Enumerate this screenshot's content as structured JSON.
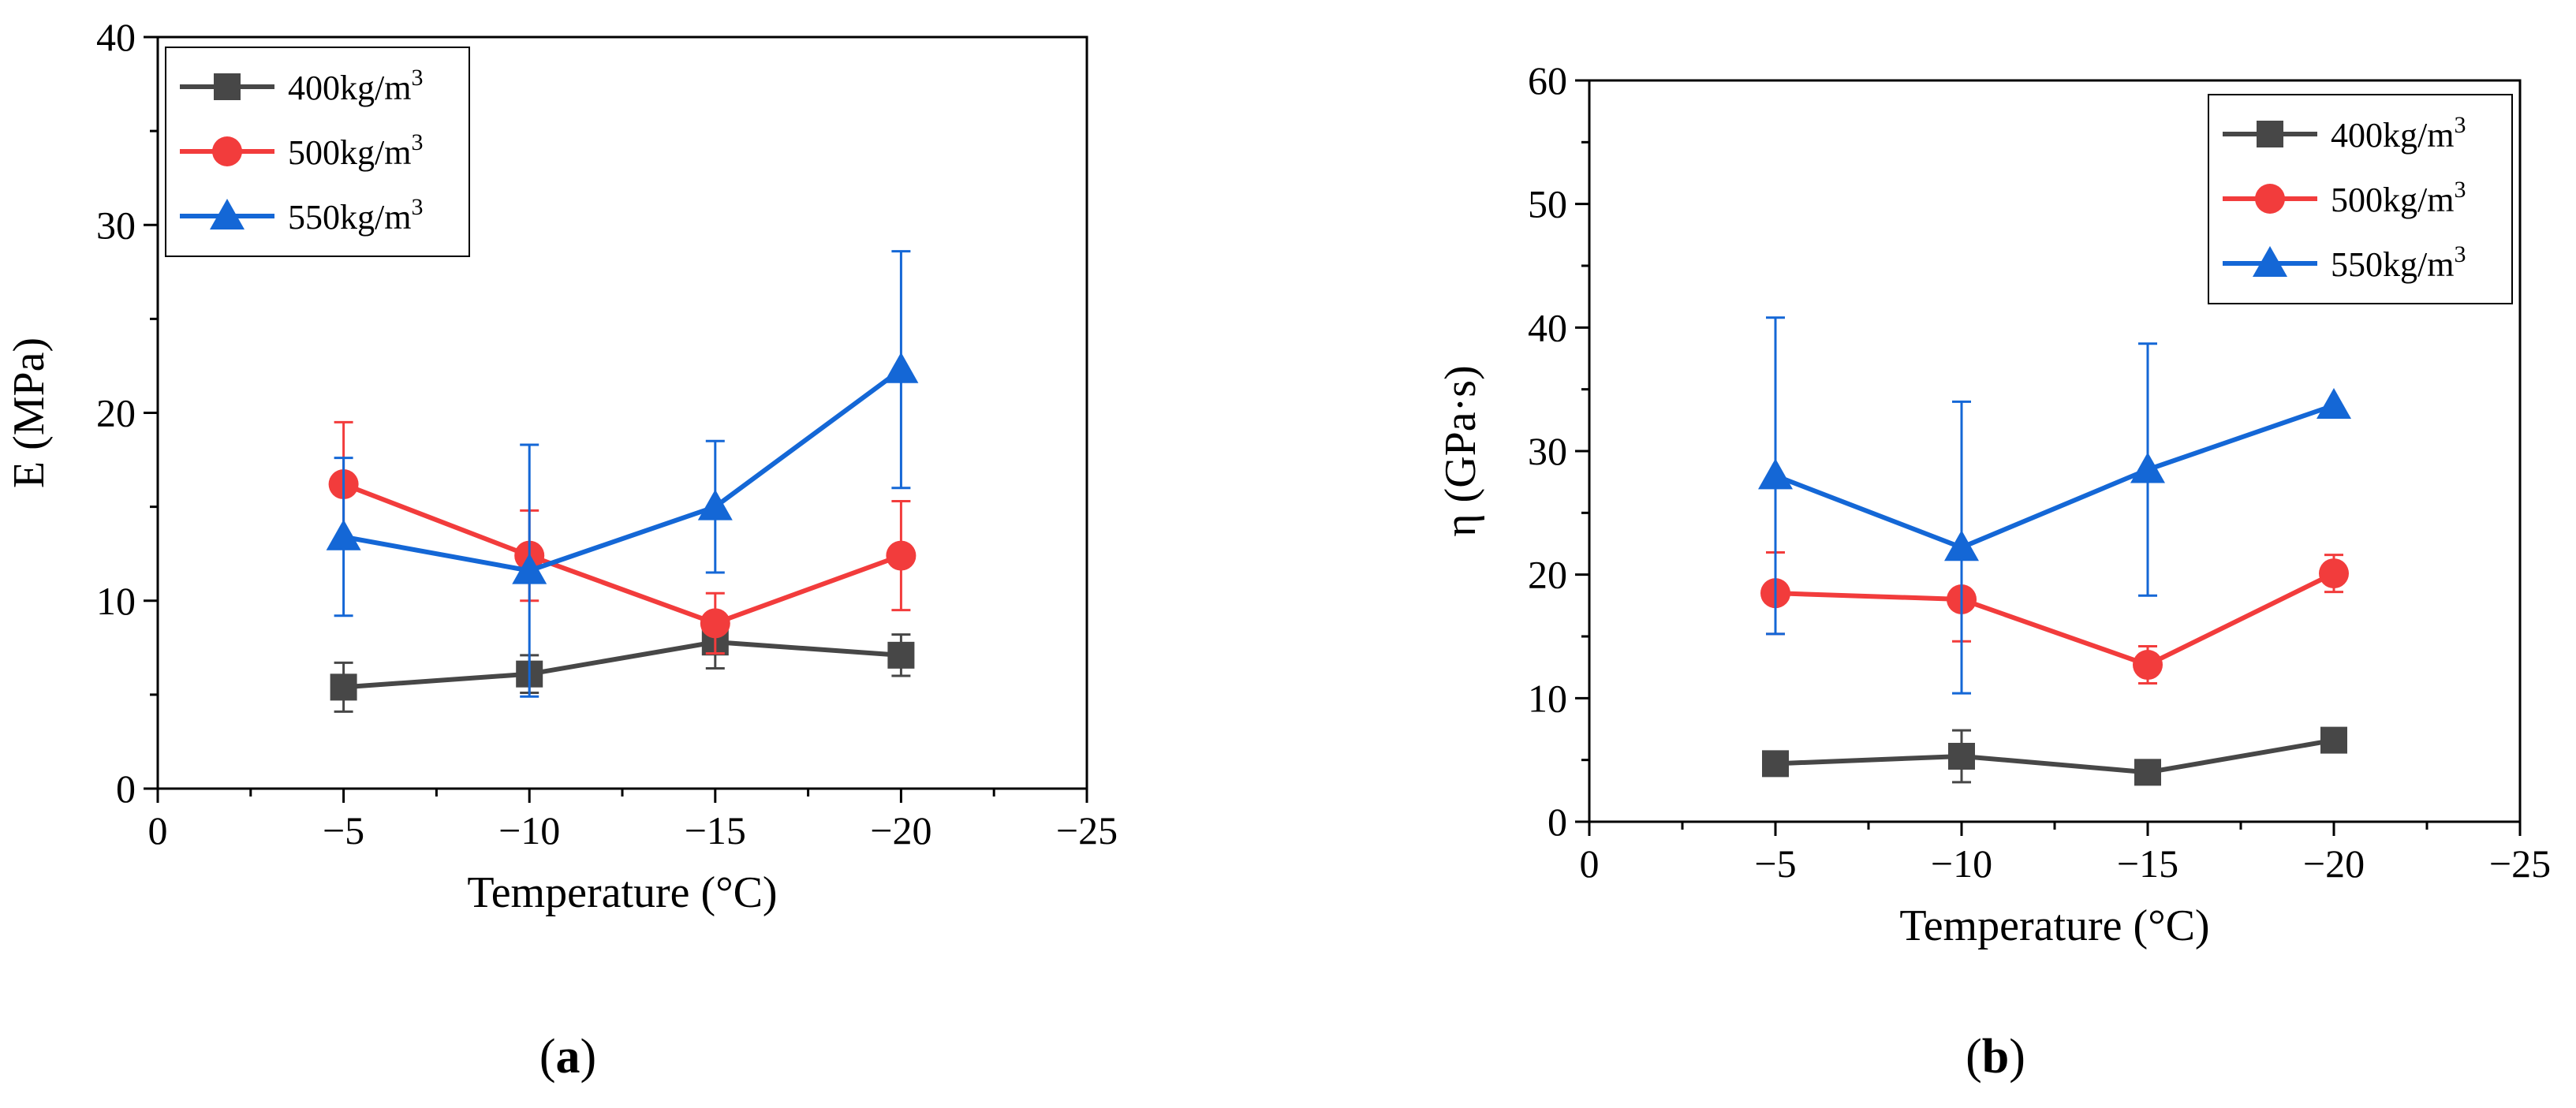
{
  "figure": {
    "panels": [
      {
        "panel_label_open": "(",
        "panel_label_letter": "a",
        "panel_label_close": ")"
      },
      {
        "panel_label_open": "(",
        "panel_label_letter": "b",
        "panel_label_close": ")"
      }
    ]
  },
  "chart_data": [
    {
      "type": "line",
      "panel": "a",
      "title": "",
      "xlabel": "Temperature (°C)",
      "ylabel": "E (MPa)",
      "xlim": [
        0,
        -25
      ],
      "ylim": [
        0,
        40
      ],
      "xticks": [
        0,
        -5,
        -10,
        -15,
        -20,
        -25
      ],
      "xtick_labels": [
        "0",
        "−5",
        "−10",
        "−15",
        "−20",
        "−25"
      ],
      "yticks": [
        0,
        10,
        20,
        30,
        40
      ],
      "ytick_labels": [
        "0",
        "10",
        "20",
        "30",
        "40"
      ],
      "legend_position": "top-left",
      "error_bars": true,
      "x": [
        -5,
        -10,
        -15,
        -20
      ],
      "series": [
        {
          "name": "400kg/m3",
          "legend_base": "400kg/m",
          "legend_sup": "3",
          "color": "#474747",
          "marker": "square",
          "values": [
            5.4,
            6.1,
            7.8,
            7.1
          ],
          "errors": [
            1.3,
            1.0,
            1.4,
            1.1
          ]
        },
        {
          "name": "500kg/m3",
          "legend_base": "500kg/m",
          "legend_sup": "3",
          "color": "#f23c3c",
          "marker": "circle",
          "values": [
            16.2,
            12.4,
            8.8,
            12.4
          ],
          "errors": [
            3.3,
            2.4,
            1.6,
            2.9
          ]
        },
        {
          "name": "550kg/m3",
          "legend_base": "550kg/m",
          "legend_sup": "3",
          "color": "#1467d6",
          "marker": "triangle",
          "values": [
            13.4,
            11.6,
            15.0,
            22.3
          ],
          "errors": [
            4.2,
            6.7,
            3.5,
            6.3
          ]
        }
      ]
    },
    {
      "type": "line",
      "panel": "b",
      "title": "",
      "xlabel": "Temperature (°C)",
      "ylabel": "η (GPa·s)",
      "xlim": [
        0,
        -25
      ],
      "ylim": [
        0,
        60
      ],
      "xticks": [
        0,
        -5,
        -10,
        -15,
        -20,
        -25
      ],
      "xtick_labels": [
        "0",
        "−5",
        "−10",
        "−15",
        "−20",
        "−25"
      ],
      "yticks": [
        0,
        10,
        20,
        30,
        40,
        50,
        60
      ],
      "ytick_labels": [
        "0",
        "10",
        "20",
        "30",
        "40",
        "50",
        "60"
      ],
      "legend_position": "top-right",
      "error_bars": true,
      "x": [
        -5,
        -10,
        -15,
        -20
      ],
      "series": [
        {
          "name": "400kg/m3",
          "legend_base": "400kg/m",
          "legend_sup": "3",
          "color": "#474747",
          "marker": "square",
          "values": [
            4.7,
            5.3,
            4.0,
            6.6
          ],
          "errors": [
            0.5,
            2.1,
            0.4,
            0.5
          ]
        },
        {
          "name": "500kg/m3",
          "legend_base": "500kg/m",
          "legend_sup": "3",
          "color": "#f23c3c",
          "marker": "circle",
          "values": [
            18.5,
            18.0,
            12.7,
            20.1
          ],
          "errors": [
            3.3,
            3.4,
            1.5,
            1.5
          ]
        },
        {
          "name": "550kg/m3",
          "legend_base": "550kg/m",
          "legend_sup": "3",
          "color": "#1467d6",
          "marker": "triangle",
          "values": [
            28.0,
            22.2,
            28.5,
            33.7
          ],
          "errors": [
            12.8,
            11.8,
            10.2,
            0.0
          ]
        }
      ]
    }
  ]
}
